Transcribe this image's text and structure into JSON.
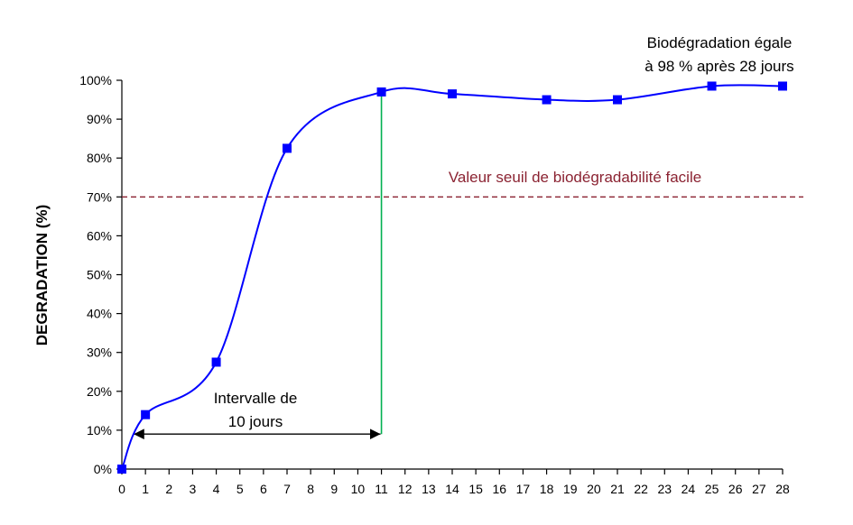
{
  "chart_data": {
    "type": "line",
    "xlabel": "",
    "ylabel": "DEGRADATION (%)",
    "x_ticks": [
      0,
      1,
      2,
      3,
      4,
      5,
      6,
      7,
      8,
      9,
      10,
      11,
      12,
      13,
      14,
      15,
      16,
      17,
      18,
      19,
      20,
      21,
      22,
      23,
      24,
      25,
      26,
      27,
      28
    ],
    "y_ticks": [
      "0%",
      "10%",
      "20%",
      "30%",
      "40%",
      "50%",
      "60%",
      "70%",
      "80%",
      "90%",
      "100%"
    ],
    "xlim": [
      0,
      28
    ],
    "ylim": [
      0,
      100
    ],
    "grid": false,
    "series": [
      {
        "x": [
          0,
          1,
          4,
          7,
          11,
          14,
          18,
          21,
          25,
          28
        ],
        "y": [
          0,
          14,
          27.5,
          82.5,
          97,
          96.5,
          95,
          95,
          98.5,
          98.5
        ],
        "color": "#0000ff",
        "marker": "square",
        "smooth": true
      }
    ],
    "threshold": {
      "value": 70,
      "label": "Valeur seuil de biodégradabilité facile",
      "color": "#8b2332",
      "style": "dashed"
    },
    "vertical_marker": {
      "x": 11,
      "y_from": 9,
      "y_to": 97,
      "color": "#00b050"
    },
    "interval_arrow": {
      "x_from": 0.5,
      "x_to": 11,
      "y": 9,
      "label_lines": [
        "Intervalle de",
        "10 jours"
      ]
    },
    "annotation": {
      "lines": [
        "Biodégradation égale",
        "à 98 % après 28 jours"
      ]
    }
  }
}
